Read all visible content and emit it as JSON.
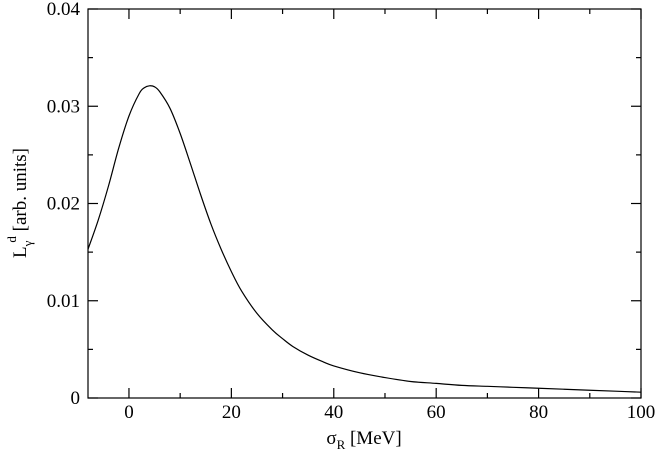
{
  "chart_data": {
    "type": "line",
    "title": "",
    "xlabel": {
      "main": "σ",
      "sub": "R",
      "rest": " [MeV]"
    },
    "ylabel": {
      "main": "L",
      "sub": "γ",
      "sup": "d",
      "rest": " [arb. units]"
    },
    "xlim": [
      -8,
      100
    ],
    "ylim": [
      0,
      0.04
    ],
    "xticks": [
      0,
      20,
      40,
      60,
      80,
      100
    ],
    "xtick_labels": [
      "0",
      "20",
      "40",
      "60",
      "80",
      "100"
    ],
    "yticks": [
      0,
      0.01,
      0.02,
      0.03,
      0.04
    ],
    "ytick_labels": [
      "0",
      "0.01",
      "0.02",
      "0.03",
      "0.04"
    ],
    "grid": false,
    "series": [
      {
        "color": "#000000",
        "x": [
          -8,
          -6,
          -4,
          -2,
          0,
          2,
          3,
          4,
          5,
          6,
          8,
          10,
          12,
          14,
          16,
          18,
          20,
          22,
          25,
          28,
          30,
          32,
          35,
          38,
          40,
          45,
          50,
          55,
          60,
          65,
          70,
          75,
          80,
          85,
          90,
          95,
          100
        ],
        "y": [
          0.0153,
          0.0183,
          0.0218,
          0.0257,
          0.029,
          0.0313,
          0.0319,
          0.0321,
          0.032,
          0.0315,
          0.0298,
          0.0272,
          0.0241,
          0.0209,
          0.0179,
          0.0153,
          0.013,
          0.011,
          0.0087,
          0.007,
          0.0061,
          0.0053,
          0.0044,
          0.0037,
          0.0033,
          0.0026,
          0.0021,
          0.0017,
          0.0015,
          0.0013,
          0.0012,
          0.0011,
          0.001,
          0.0009,
          0.0008,
          0.0007,
          0.0006
        ]
      }
    ]
  }
}
